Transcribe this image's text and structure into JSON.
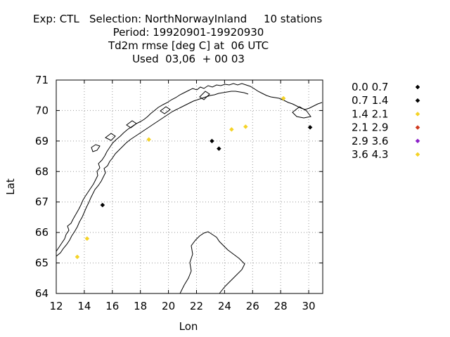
{
  "header": {
    "line1": "Exp: CTL   Selection: NorthNorwayInland     10 stations",
    "line2": "Period: 19920901-19920930",
    "line3": "Td2m rmse [deg C] at  06 UTC",
    "line4": "Used  03,06  + 00 03"
  },
  "chart_data": {
    "type": "scatter",
    "title": "Td2m rmse [deg C] at  06 UTC",
    "xlabel": "Lon",
    "ylabel": "Lat",
    "xlim": [
      12,
      31
    ],
    "ylim": [
      64,
      71
    ],
    "xticks": [
      12,
      14,
      16,
      18,
      20,
      22,
      24,
      26,
      28,
      30
    ],
    "yticks": [
      64,
      65,
      66,
      67,
      68,
      69,
      70,
      71
    ],
    "grid": true,
    "legend_position": "right",
    "background_map": "coastline of northern Norway",
    "legend": [
      {
        "label": "0.0 0.7",
        "color": "#000000"
      },
      {
        "label": "0.7 1.4",
        "color": "#000000"
      },
      {
        "label": "1.4 2.1",
        "color": "#f5d327"
      },
      {
        "label": "2.1 2.9",
        "color": "#d03a1e"
      },
      {
        "label": "2.9 3.6",
        "color": "#8a1ec8"
      },
      {
        "label": "3.6 4.3",
        "color": "#f5d327"
      }
    ],
    "points": [
      {
        "lon": 13.5,
        "lat": 65.2,
        "color": "#f5d327"
      },
      {
        "lon": 14.2,
        "lat": 65.8,
        "color": "#f5d327"
      },
      {
        "lon": 15.3,
        "lat": 66.9,
        "color": "#000000"
      },
      {
        "lon": 18.6,
        "lat": 69.05,
        "color": "#f5d327"
      },
      {
        "lon": 23.1,
        "lat": 69.0,
        "color": "#000000"
      },
      {
        "lon": 23.6,
        "lat": 68.75,
        "color": "#000000"
      },
      {
        "lon": 24.5,
        "lat": 69.38,
        "color": "#f5d327"
      },
      {
        "lon": 25.5,
        "lat": 69.47,
        "color": "#f5d327"
      },
      {
        "lon": 28.2,
        "lat": 70.4,
        "color": "#f5d327"
      },
      {
        "lon": 30.1,
        "lat": 69.45,
        "color": "#000000"
      }
    ]
  }
}
